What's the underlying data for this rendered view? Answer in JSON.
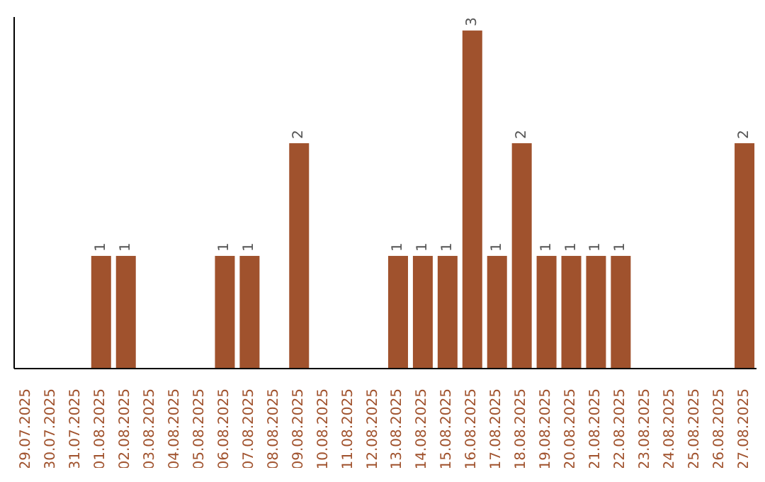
{
  "chart_data": {
    "type": "bar",
    "categories": [
      "29.07.2025",
      "30.07.2025",
      "31.07.2025",
      "01.08.2025",
      "02.08.2025",
      "03.08.2025",
      "04.08.2025",
      "05.08.2025",
      "06.08.2025",
      "07.08.2025",
      "08.08.2025",
      "09.08.2025",
      "10.08.2025",
      "11.08.2025",
      "12.08.2025",
      "13.08.2025",
      "14.08.2025",
      "15.08.2025",
      "16.08.2025",
      "17.08.2025",
      "18.08.2025",
      "19.08.2025",
      "20.08.2025",
      "21.08.2025",
      "22.08.2025",
      "23.08.2025",
      "24.08.2025",
      "25.08.2025",
      "26.08.2025",
      "27.08.2025"
    ],
    "values": [
      0,
      0,
      0,
      1,
      1,
      0,
      0,
      0,
      1,
      1,
      0,
      2,
      0,
      0,
      0,
      1,
      1,
      1,
      3,
      1,
      2,
      1,
      1,
      1,
      1,
      0,
      0,
      0,
      0,
      2
    ],
    "value_labels": [
      null,
      null,
      null,
      "1",
      "1",
      null,
      null,
      null,
      "1",
      "1",
      null,
      "2",
      null,
      null,
      null,
      "1",
      "1",
      "1",
      "3",
      "1",
      "2",
      "1",
      "1",
      "1",
      "1",
      null,
      null,
      null,
      null,
      "2"
    ],
    "color": "#a0522d",
    "grid": false,
    "legend": false
  }
}
